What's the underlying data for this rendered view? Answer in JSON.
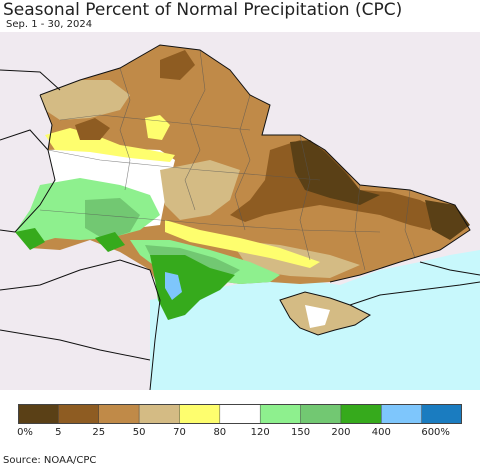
{
  "title": "Seasonal Percent of Normal Precipitation (CPC)",
  "subtitle": "Sep. 1 - 30, 2024",
  "source": "Source: NOAA/CPC",
  "legend": {
    "colors": [
      "#5a4016",
      "#8e5c22",
      "#c08a48",
      "#d4bb84",
      "#fefe6e",
      "#ffffff",
      "#8ef08e",
      "#72c872",
      "#36aa1c",
      "#7ec6fc",
      "#1a7cc0"
    ],
    "labels": [
      "0%",
      "5",
      "25",
      "50",
      "70",
      "80",
      "120",
      "150",
      "200",
      "400",
      "600%"
    ]
  }
}
